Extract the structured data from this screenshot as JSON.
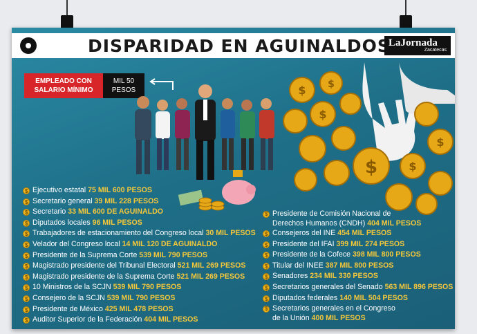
{
  "title": "DISPARIDAD EN AGUINALDOS",
  "brand": {
    "name": "LaJornada",
    "edition": "Zacatecas"
  },
  "badge": {
    "label_line1": "EMPLEADO CON",
    "label_line2": "SALARIO MÍNIMO",
    "value_line1": "MIL 50",
    "value_line2": "PESOS"
  },
  "colors": {
    "background": "#1f6f88",
    "accent": "#f5c83a",
    "badge_red": "#d8252a"
  },
  "left_list": [
    {
      "label": "Ejecutivo estatal",
      "amount": "75 MIL 600 PESOS"
    },
    {
      "label": "Secretario general",
      "amount": "39 MIL 228 PESOS"
    },
    {
      "label": "Secretario",
      "amount": "33 MIL 600 DE AGUINALDO"
    },
    {
      "label": "Diputados locales",
      "amount": "96 MIL PESOS"
    },
    {
      "label": "Trabajadores de estacionamiento del Congreso local",
      "amount": "30 MIL PESOS"
    },
    {
      "label": "Velador del Congreso local",
      "amount": "14 MIL 120 DE AGUINALDO"
    },
    {
      "label": "Presidente de la Suprema Corte",
      "amount": "539 MIL 790 PESOS"
    },
    {
      "label": "Magistrado presidente del Tribunal Electoral",
      "amount": "521 MIL 269 PESOS"
    },
    {
      "label": "Magistrado presidente de la Suprema Corte",
      "amount": "521 MIL 269 PESOS"
    },
    {
      "label": "10 Ministros de la SCJN",
      "amount": "539 MIL 790 PESOS"
    },
    {
      "label": "Consejero de la SCJN",
      "amount": "539 MIL 790 PESOS"
    },
    {
      "label": "Presidente de México",
      "amount": "425 MIL 478 PESOS"
    },
    {
      "label": "Auditor Superior de la Federación",
      "amount": "404 MIL PESOS"
    }
  ],
  "right_list": [
    {
      "label": "Presidente de Comisión Nacional de",
      "label2": "Derechos Humanos (CNDH)",
      "amount": "404 MIL PESOS"
    },
    {
      "label": "Consejeros del INE",
      "amount": "454 MIL PESOS"
    },
    {
      "label": "Presidente del IFAI",
      "amount": "399 MIL 274 PESOS"
    },
    {
      "label": "Presidente de la Cofece",
      "amount": "398 MIL 800 PESOS"
    },
    {
      "label": "Titular del INEE",
      "amount": "387 MIL 800 PESOS"
    },
    {
      "label": "Senadores",
      "amount": "234 MIL 330 PESOS"
    },
    {
      "label": "Secretarios generales del Senado",
      "amount": "563 MIL 896 PESOS"
    },
    {
      "label": "Diputados federales",
      "amount": "140 MIL 504 PESOS"
    },
    {
      "label": "Secretarios generales en el Congreso",
      "label2": "de la Unión",
      "amount": "400 MIL PESOS"
    }
  ]
}
